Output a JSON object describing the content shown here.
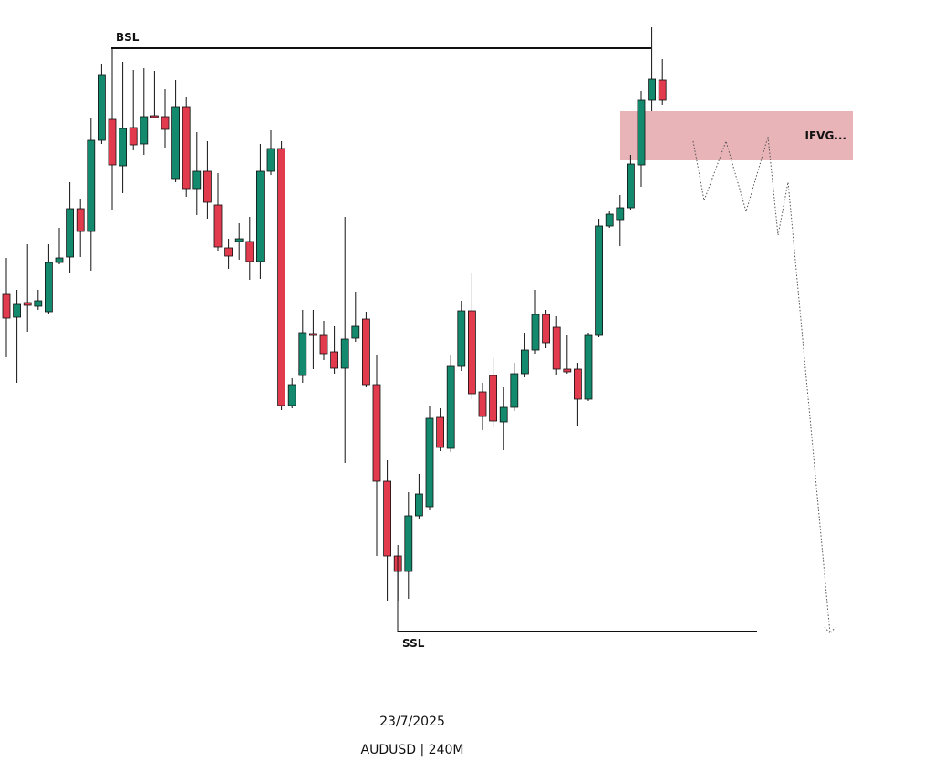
{
  "chart_data": {
    "type": "candlestick",
    "title": "AUDUSD | 240M",
    "subtitle": "23/7/2025",
    "categories": [
      null,
      null,
      null,
      null,
      null,
      null,
      null,
      null,
      null,
      null,
      null,
      null,
      null,
      null,
      null,
      null,
      null,
      null,
      null,
      null,
      null,
      null,
      null,
      null,
      null,
      null,
      null,
      null,
      null,
      null,
      null,
      null,
      null,
      null,
      null,
      null,
      null,
      null,
      null,
      null,
      null,
      null,
      null,
      null,
      null,
      null,
      null,
      null,
      null,
      null,
      null,
      null,
      null,
      null,
      null,
      null,
      null,
      null,
      null,
      null,
      null,
      null,
      null
    ],
    "open": [
      477,
      452,
      468,
      464,
      458,
      512,
      518,
      571,
      546,
      646,
      669,
      618,
      660,
      642,
      673,
      672,
      604,
      683,
      593,
      612,
      575,
      528,
      535,
      535,
      513,
      612,
      637,
      355,
      388,
      434,
      432,
      414,
      396,
      429,
      450,
      378,
      272,
      190,
      173,
      234,
      244,
      342,
      308,
      398,
      459,
      370,
      388,
      337,
      353,
      390,
      416,
      455,
      441,
      395,
      395,
      362,
      432,
      552,
      559,
      572,
      619,
      690,
      712
    ],
    "high": [
      517,
      482,
      532,
      482,
      532,
      550,
      600,
      582,
      670,
      730,
      747,
      732,
      723,
      725,
      722,
      702,
      712,
      694,
      655,
      645,
      610,
      538,
      555,
      562,
      642,
      657,
      645,
      385,
      460,
      460,
      448,
      442,
      562,
      480,
      458,
      410,
      295,
      202,
      260,
      280,
      354,
      352,
      410,
      470,
      500,
      380,
      407,
      375,
      402,
      435,
      482,
      460,
      453,
      432,
      402,
      435,
      560,
      568,
      586,
      630,
      700,
      770,
      735
    ],
    "low": [
      408,
      380,
      436,
      460,
      455,
      510,
      500,
      518,
      503,
      642,
      570,
      588,
      635,
      630,
      670,
      638,
      600,
      584,
      564,
      560,
      525,
      505,
      515,
      493,
      494,
      608,
      350,
      352,
      380,
      395,
      405,
      390,
      292,
      425,
      375,
      190,
      140,
      140,
      143,
      230,
      240,
      305,
      304,
      393,
      362,
      328,
      332,
      306,
      349,
      386,
      412,
      418,
      388,
      390,
      333,
      360,
      430,
      550,
      530,
      570,
      595,
      678,
      685
    ],
    "close": [
      451,
      466,
      465,
      470,
      512,
      517,
      571,
      546,
      646,
      718,
      619,
      659,
      641,
      672,
      671,
      658,
      683,
      593,
      612,
      578,
      529,
      519,
      538,
      513,
      612,
      637,
      355,
      378,
      435,
      432,
      412,
      396,
      428,
      442,
      378,
      272,
      190,
      173,
      234,
      258,
      341,
      309,
      398,
      459,
      368,
      343,
      338,
      353,
      390,
      416,
      455,
      424,
      395,
      392,
      362,
      432,
      552,
      565,
      572,
      620,
      690,
      713,
      690
    ],
    "up_color": "#138a6e",
    "down_color": "#e23b4e",
    "ylim": [
      0,
      800
    ],
    "annotations": [
      {
        "label": "BSL",
        "value": 747
      },
      {
        "label": "SSL",
        "value": 107
      }
    ],
    "zone": {
      "label": "IFVG...",
      "top": 678,
      "bottom": 624,
      "color": "#e8b4b8"
    }
  }
}
